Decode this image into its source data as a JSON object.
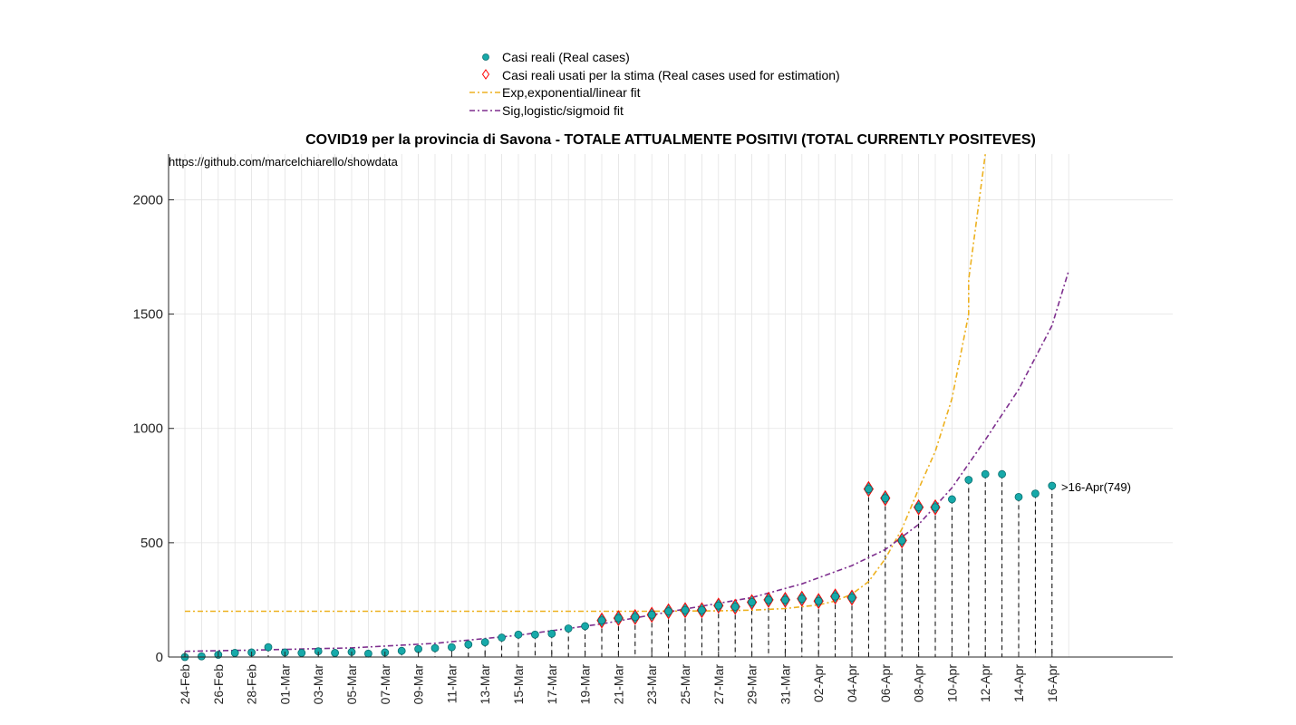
{
  "chart_data": {
    "type": "scatter",
    "title": "COVID19 per la provincia di Savona - TOTALE ATTUALMENTE POSITIVI (TOTAL CURRENTLY POSITEVES)",
    "source_note": "https://github.com/marcelchiarello/showdata",
    "xlabel": "",
    "ylabel": "",
    "ylim": [
      0,
      2200
    ],
    "yticks": [
      0,
      500,
      1000,
      1500,
      2000
    ],
    "grid": true,
    "legend_placement": "top-center (outside)",
    "dates": [
      "24-Feb",
      "25-Feb",
      "26-Feb",
      "27-Feb",
      "28-Feb",
      "29-Feb",
      "01-Mar",
      "02-Mar",
      "03-Mar",
      "04-Mar",
      "05-Mar",
      "06-Mar",
      "07-Mar",
      "08-Mar",
      "09-Mar",
      "10-Mar",
      "11-Mar",
      "12-Mar",
      "13-Mar",
      "14-Mar",
      "15-Mar",
      "16-Mar",
      "17-Mar",
      "18-Mar",
      "19-Mar",
      "20-Mar",
      "21-Mar",
      "22-Mar",
      "23-Mar",
      "24-Mar",
      "25-Mar",
      "26-Mar",
      "27-Mar",
      "28-Mar",
      "29-Mar",
      "30-Mar",
      "31-Mar",
      "01-Apr",
      "02-Apr",
      "03-Apr",
      "04-Apr",
      "05-Apr",
      "06-Apr",
      "07-Apr",
      "08-Apr",
      "09-Apr",
      "10-Apr",
      "11-Apr",
      "12-Apr",
      "13-Apr",
      "14-Apr",
      "15-Apr",
      "16-Apr",
      "17-Apr"
    ],
    "xtick_labels": [
      "24-Feb",
      "26-Feb",
      "28-Feb",
      "01-Mar",
      "03-Mar",
      "05-Mar",
      "07-Mar",
      "09-Mar",
      "11-Mar",
      "13-Mar",
      "15-Mar",
      "17-Mar",
      "19-Mar",
      "21-Mar",
      "23-Mar",
      "25-Mar",
      "27-Mar",
      "29-Mar",
      "31-Mar",
      "02-Apr",
      "04-Apr",
      "06-Apr",
      "08-Apr",
      "10-Apr",
      "12-Apr",
      "14-Apr",
      "16-Apr"
    ],
    "series": [
      {
        "name": "Casi reali (Real cases)",
        "marker": "circle",
        "color": "#17a9a9",
        "values": [
          0,
          3,
          10,
          18,
          20,
          43,
          20,
          18,
          25,
          18,
          22,
          15,
          20,
          27,
          35,
          39,
          43,
          55,
          65,
          85,
          98,
          98,
          102,
          125,
          135,
          160,
          170,
          175,
          185,
          200,
          205,
          205,
          225,
          220,
          240,
          250,
          250,
          255,
          245,
          265,
          260,
          735,
          695,
          510,
          655,
          655,
          690,
          775,
          800,
          800,
          700,
          715,
          749
        ]
      },
      {
        "name": "Casi reali usati per la stima (Real cases used for estimation)",
        "marker": "diamond",
        "color": "#ff0000",
        "start_index": 25,
        "values": [
          160,
          170,
          175,
          185,
          200,
          205,
          205,
          225,
          220,
          240,
          250,
          250,
          255,
          245,
          265,
          260,
          735,
          695,
          510,
          655,
          655
        ]
      },
      {
        "name": "Exp,exponential/linear fit",
        "style": "dash-dot",
        "color": "#edb120",
        "x": [
          "24-Feb",
          "13-Mar",
          "15-Mar",
          "17-Mar",
          "19-Mar",
          "21-Mar",
          "23-Mar",
          "25-Mar",
          "27-Mar",
          "29-Mar",
          "31-Mar",
          "02-Apr",
          "03-Apr",
          "04-Apr",
          "05-Apr",
          "06-Apr",
          "07-Apr",
          "08-Apr",
          "09-Apr",
          "10-Apr",
          "11-Apr",
          "11-Apr",
          "12-Apr"
        ],
        "values": [
          200,
          200,
          200,
          200,
          200,
          200,
          200,
          201,
          202,
          205,
          212,
          228,
          245,
          275,
          330,
          430,
          560,
          735,
          900,
          1130,
          1500,
          1650,
          2200
        ]
      },
      {
        "name": "Sig,logistic/sigmoid fit",
        "style": "dash-dot",
        "color": "#7e2f8e",
        "x": [
          "24-Feb",
          "28-Feb",
          "05-Mar",
          "10-Mar",
          "15-Mar",
          "20-Mar",
          "25-Mar",
          "29-Mar",
          "01-Apr",
          "04-Apr",
          "06-Apr",
          "08-Apr",
          "10-Apr",
          "12-Apr",
          "14-Apr",
          "16-Apr",
          "17-Apr"
        ],
        "values": [
          25,
          30,
          40,
          60,
          95,
          145,
          210,
          260,
          320,
          400,
          470,
          580,
          740,
          950,
          1170,
          1450,
          1690
        ]
      }
    ],
    "annotations": [
      {
        "text": ">16-Apr(749)",
        "x": "16-Apr",
        "y": 749
      }
    ]
  }
}
